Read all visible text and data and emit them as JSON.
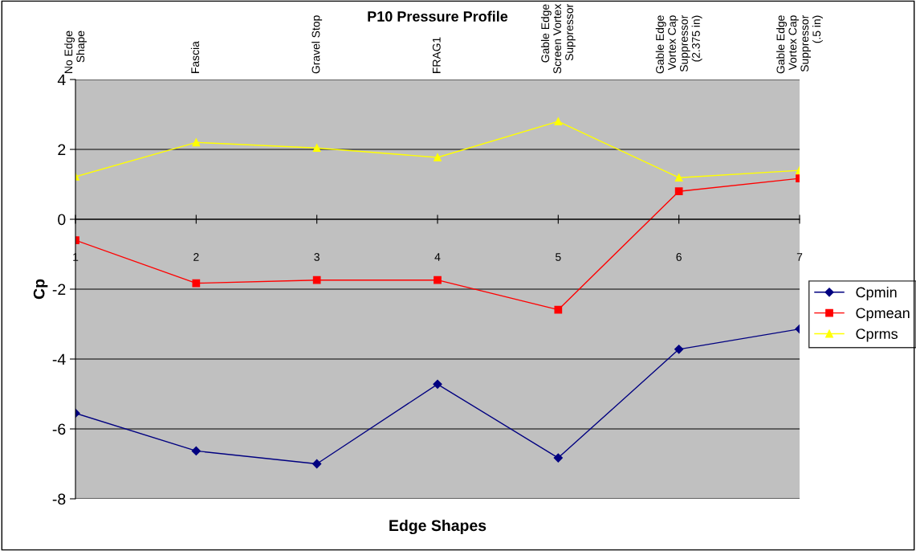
{
  "chart_data": {
    "type": "line",
    "title": "P10 Pressure Profile",
    "xlabel": "Edge Shapes",
    "ylabel": "Cp",
    "x": [
      1,
      2,
      3,
      4,
      5,
      6,
      7
    ],
    "series": [
      {
        "name": "Cpmin",
        "color": "#000080",
        "marker": "diamond",
        "values": [
          -5.55,
          -6.63,
          -7.0,
          -4.72,
          -6.83,
          -3.72,
          -3.14
        ]
      },
      {
        "name": "Cpmean",
        "color": "#ff0000",
        "marker": "square",
        "values": [
          -0.6,
          -1.83,
          -1.74,
          -1.74,
          -2.59,
          0.8,
          1.17
        ]
      },
      {
        "name": "Cprms",
        "color": "#ffff00",
        "marker": "triangle",
        "values": [
          1.22,
          2.2,
          2.04,
          1.77,
          2.8,
          1.19,
          1.4
        ]
      }
    ],
    "annotations": [
      "No Edge\nShape",
      "Fascia",
      "Gravel Stop",
      "FRAG1",
      "Gable Edge\nScreen Vortex\nSuppressor",
      "Gable Edge\nVortex Cap\nSuppressor\n(2.375 in)",
      "Gable Edge\nVortex Cap\nSuppressor\n(.5 in)"
    ],
    "xlim": [
      1,
      7
    ],
    "xticks": [
      1,
      2,
      3,
      4,
      5,
      6,
      7
    ],
    "ylim": [
      -8,
      4
    ],
    "yticks": [
      -8,
      -6,
      -4,
      -2,
      0,
      2,
      4
    ],
    "grid": "y",
    "legend": "right"
  }
}
